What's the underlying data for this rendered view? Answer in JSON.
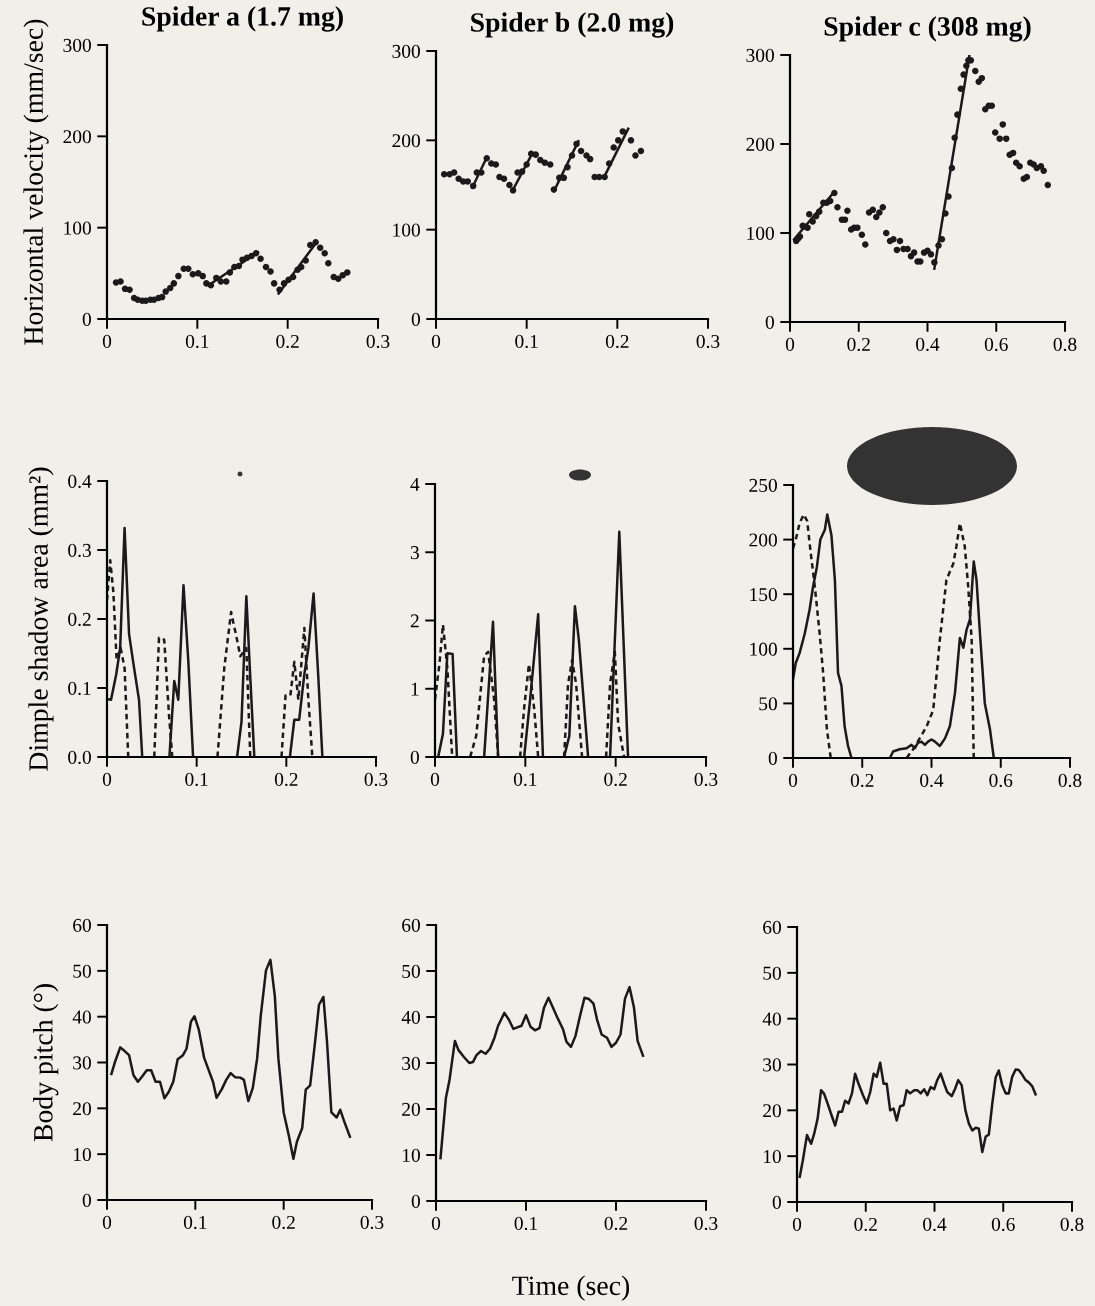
{
  "chart_data": [
    {
      "type": "scatter",
      "title": "Spider a (1.7 mg)",
      "ylabel": "Horizontal velocity (mm/sec)",
      "xlim": [
        0,
        0.3
      ],
      "xticks": [
        0,
        0.1,
        0.2,
        0.3
      ],
      "ylim": [
        0,
        300
      ],
      "yticks": [
        0,
        100,
        200,
        300
      ],
      "series": [
        {
          "marker": "circle",
          "color": "#1a1a1a",
          "x": [
            0.01,
            0.015,
            0.02,
            0.025,
            0.03,
            0.034,
            0.039,
            0.043,
            0.048,
            0.052,
            0.057,
            0.061,
            0.065,
            0.07,
            0.074,
            0.079,
            0.085,
            0.09,
            0.095,
            0.101,
            0.106,
            0.11,
            0.115,
            0.121,
            0.126,
            0.132,
            0.136,
            0.141,
            0.146,
            0.15,
            0.155,
            0.16,
            0.165,
            0.17,
            0.176,
            0.181,
            0.185,
            0.191,
            0.196,
            0.201,
            0.206,
            0.211,
            0.215,
            0.22,
            0.225,
            0.231,
            0.236,
            0.241,
            0.245,
            0.251,
            0.256,
            0.261,
            0.266
          ],
          "values": [
            40,
            41,
            33,
            32,
            23,
            21,
            20,
            20,
            21,
            21,
            23,
            24,
            30,
            34,
            39,
            47,
            55,
            55,
            49,
            50,
            47,
            39,
            37,
            45,
            41,
            41,
            51,
            57,
            58,
            65,
            67,
            69,
            72,
            66,
            57,
            52,
            39,
            32,
            39,
            43,
            46,
            54,
            57,
            64,
            81,
            84,
            78,
            72,
            61,
            46,
            44,
            48,
            51
          ]
        },
        {
          "type": "line",
          "color": "#1a1a1a",
          "x": [
            0.114,
            0.167
          ],
          "values": [
            38,
            73
          ]
        },
        {
          "type": "line",
          "color": "#1a1a1a",
          "x": [
            0.19,
            0.232
          ],
          "values": [
            28,
            84
          ]
        }
      ]
    },
    {
      "type": "scatter",
      "title": "Spider b (2.0 mg)",
      "xlim": [
        0,
        0.3
      ],
      "xticks": [
        0,
        0.1,
        0.2,
        0.3
      ],
      "ylim": [
        0,
        300
      ],
      "yticks": [
        0,
        100,
        200,
        300
      ],
      "series": [
        {
          "marker": "circle",
          "color": "#1a1a1a",
          "x": [
            0.009,
            0.015,
            0.02,
            0.025,
            0.03,
            0.035,
            0.041,
            0.045,
            0.05,
            0.056,
            0.061,
            0.066,
            0.07,
            0.075,
            0.081,
            0.085,
            0.09,
            0.095,
            0.1,
            0.105,
            0.11,
            0.115,
            0.12,
            0.126,
            0.13,
            0.136,
            0.141,
            0.145,
            0.15,
            0.155,
            0.16,
            0.166,
            0.17,
            0.175,
            0.18,
            0.186,
            0.191,
            0.196,
            0.201,
            0.206,
            0.215,
            0.22,
            0.226
          ],
          "values": [
            162,
            162,
            164,
            157,
            154,
            154,
            149,
            164,
            164,
            180,
            174,
            173,
            159,
            157,
            150,
            144,
            164,
            165,
            173,
            185,
            184,
            178,
            175,
            173,
            145,
            158,
            158,
            170,
            183,
            196,
            188,
            183,
            179,
            159,
            159,
            159,
            174,
            192,
            200,
            210,
            200,
            183,
            188
          ]
        },
        {
          "type": "line",
          "color": "#1a1a1a",
          "x": [
            0.04,
            0.056
          ],
          "values": [
            147,
            181
          ]
        },
        {
          "type": "line",
          "color": "#1a1a1a",
          "x": [
            0.084,
            0.106
          ],
          "values": [
            143,
            185
          ]
        },
        {
          "type": "line",
          "color": "#1a1a1a",
          "x": [
            0.13,
            0.157
          ],
          "values": [
            143,
            199
          ]
        },
        {
          "type": "line",
          "color": "#1a1a1a",
          "x": [
            0.185,
            0.212
          ],
          "values": [
            158,
            213
          ]
        }
      ]
    },
    {
      "type": "scatter",
      "title": "Spider c (308 mg)",
      "xlim": [
        0,
        0.8
      ],
      "xticks": [
        0,
        0.2,
        0.4,
        0.6,
        0.8
      ],
      "ylim": [
        0,
        300
      ],
      "yticks": [
        0,
        100,
        200,
        300
      ],
      "series": [
        {
          "marker": "circle",
          "color": "#1a1a1a",
          "x": [
            0.018,
            0.024,
            0.029,
            0.037,
            0.045,
            0.051,
            0.056,
            0.066,
            0.076,
            0.085,
            0.097,
            0.107,
            0.117,
            0.129,
            0.138,
            0.151,
            0.16,
            0.167,
            0.178,
            0.187,
            0.196,
            0.209,
            0.219,
            0.23,
            0.241,
            0.251,
            0.26,
            0.27,
            0.28,
            0.291,
            0.301,
            0.311,
            0.32,
            0.33,
            0.342,
            0.352,
            0.361,
            0.371,
            0.379,
            0.39,
            0.4,
            0.41,
            0.42,
            0.432,
            0.442,
            0.452,
            0.461,
            0.471,
            0.479,
            0.487,
            0.497,
            0.505,
            0.513,
            0.519,
            0.526,
            0.539,
            0.549,
            0.558,
            0.568,
            0.578,
            0.587,
            0.597,
            0.61,
            0.619,
            0.629,
            0.639,
            0.649,
            0.658,
            0.668,
            0.68,
            0.689,
            0.699,
            0.709,
            0.718,
            0.73,
            0.738,
            0.75
          ],
          "values": [
            91,
            94,
            96,
            108,
            107,
            106,
            121,
            113,
            119,
            124,
            134,
            134,
            136,
            145,
            129,
            115,
            115,
            125,
            104,
            106,
            106,
            98,
            87,
            123,
            126,
            118,
            123,
            129,
            100,
            91,
            93,
            81,
            91,
            82,
            82,
            74,
            78,
            68,
            68,
            78,
            80,
            76,
            67,
            86,
            93,
            122,
            141,
            173,
            207,
            233,
            262,
            278,
            288,
            294,
            294,
            282,
            270,
            274,
            239,
            243,
            243,
            213,
            206,
            222,
            206,
            188,
            190,
            179,
            175,
            161,
            163,
            179,
            177,
            173,
            175,
            170,
            154
          ]
        },
        {
          "type": "line",
          "color": "#1a1a1a",
          "x": [
            0.012,
            0.126
          ],
          "values": [
            93,
            145
          ]
        },
        {
          "type": "line",
          "color": "#1a1a1a",
          "x": [
            0.42,
            0.522
          ],
          "values": [
            60,
            300
          ]
        }
      ]
    },
    {
      "type": "line",
      "ylabel": "Dimple shadow area (mm²)",
      "xlim": [
        0,
        0.3
      ],
      "xticks": [
        0,
        0.1,
        0.2,
        0.3
      ],
      "ylim": [
        0,
        0.4
      ],
      "yticks": [
        {
          "value": 0,
          "label": "0.0"
        },
        0.1,
        0.2,
        0.3,
        0.4
      ],
      "series": [
        {
          "line_style": "solid",
          "color": "#1a1a1a",
          "x": [
            0,
            0.0045,
            0.0103,
            0.0147,
            0.0196,
            0.0246,
            0.0295,
            0.0357,
            0.0393,
            0.0545,
            0.0696,
            0.075,
            0.0795,
            0.0853,
            0.0906,
            0.096,
            0.12,
            0.1451,
            0.15,
            0.1554,
            0.1598,
            0.1643,
            0.184,
            0.204,
            0.2089,
            0.2143,
            0.2201,
            0.2246,
            0.2304,
            0.2357,
            0.2402
          ],
          "values": [
            0.084,
            0.083,
            0.12,
            0.158,
            0.332,
            0.178,
            0.135,
            0.083,
            0,
            null,
            0,
            0.11,
            0.083,
            0.249,
            0.141,
            0,
            null,
            0,
            0.051,
            0.233,
            0.115,
            0,
            null,
            0,
            0.054,
            0.054,
            0.12,
            0.158,
            0.237,
            0.115,
            0
          ]
        },
        {
          "line_style": "dashed",
          "color": "#1a1a1a",
          "x": [
            0,
            0.0036,
            0.0071,
            0.0107,
            0.0152,
            0.0196,
            0.0237,
            0.038,
            0.0527,
            0.058,
            0.0638,
            0.0692,
            0.0728,
            0.098,
            0.1232,
            0.1308,
            0.1384,
            0.1442,
            0.1487,
            0.1554,
            0.1598,
            0.177,
            0.1946,
            0.1991,
            0.2045,
            0.2089,
            0.2134,
            0.2201,
            0.2246,
            0.229
          ],
          "values": [
            0.227,
            0.285,
            0.239,
            0.141,
            0.158,
            0.129,
            0,
            null,
            0,
            0.173,
            0.17,
            0.06,
            0,
            null,
            0,
            0.129,
            0.21,
            0.175,
            0.146,
            0.158,
            0,
            null,
            0,
            0.089,
            0.089,
            0.138,
            0.083,
            0.187,
            0.083,
            0
          ]
        }
      ]
    },
    {
      "type": "line",
      "xlim": [
        0,
        0.3
      ],
      "xticks": [
        0,
        0.1,
        0.2,
        0.3
      ],
      "ylim": [
        0,
        4
      ],
      "yticks": [
        0,
        1,
        2,
        3,
        4
      ],
      "series": [
        {
          "line_style": "solid",
          "color": "#1a1a1a",
          "x": [
            0.0035,
            0.0088,
            0.0137,
            0.0195,
            0.0243,
            0.039,
            0.0544,
            0.0642,
            0.0699,
            0.084,
            0.0987,
            0.1053,
            0.1142,
            0.1195,
            0.131,
            0.1429,
            0.1487,
            0.1549,
            0.1593,
            0.1695,
            0.182,
            0.1938,
            0.204,
            0.2137
          ],
          "values": [
            0,
            0.34,
            1.52,
            1.51,
            0,
            null,
            0,
            1.98,
            0,
            null,
            0,
            0.84,
            2.09,
            0,
            null,
            0,
            0.31,
            2.21,
            1.71,
            0,
            null,
            0,
            3.3,
            0
          ]
        },
        {
          "line_style": "dashed",
          "color": "#1a1a1a",
          "x": [
            0,
            0.0049,
            0.0088,
            0.0137,
            0.019,
            0.029,
            0.0389,
            0.0456,
            0.0544,
            0.0588,
            0.0655,
            0.0699,
            0.082,
            0.0942,
            0.0987,
            0.104,
            0.1097,
            0.1142,
            0.128,
            0.1429,
            0.1473,
            0.1518,
            0.1562,
            0.1628,
            0.176,
            0.1894,
            0.1938,
            0.1991,
            0.2027,
            0.2093
          ],
          "values": [
            0.84,
            1.36,
            1.94,
            1.3,
            0,
            null,
            0,
            0.31,
            1.48,
            1.54,
            0.84,
            0,
            null,
            0,
            0.72,
            1.36,
            0.72,
            0,
            null,
            0,
            1.07,
            1.42,
            1.07,
            0,
            null,
            0,
            1.07,
            1.54,
            0.49,
            0
          ]
        }
      ]
    },
    {
      "type": "line",
      "xlim": [
        0,
        0.8
      ],
      "xticks": [
        0,
        0.2,
        0.4,
        0.6,
        0.8
      ],
      "ylim": [
        0,
        250
      ],
      "yticks": [
        0,
        50,
        100,
        150,
        200,
        250
      ],
      "series": [
        {
          "line_style": "solid",
          "color": "#1a1a1a",
          "x": [
            0,
            0.008,
            0.019,
            0.034,
            0.048,
            0.058,
            0.069,
            0.079,
            0.092,
            0.099,
            0.111,
            0.121,
            0.13,
            0.14,
            0.149,
            0.159,
            0.169,
            0.22,
            0.28,
            0.289,
            0.308,
            0.328,
            0.342,
            0.352,
            0.361,
            0.371,
            0.381,
            0.39,
            0.4,
            0.41,
            0.424,
            0.439,
            0.453,
            0.468,
            0.482,
            0.492,
            0.501,
            0.511,
            0.522,
            0.53,
            0.54,
            0.554,
            0.569,
            0.58
          ],
          "values": [
            72,
            87,
            96,
            114,
            136,
            157,
            175,
            200,
            209,
            223,
            204,
            163,
            78,
            66,
            29,
            11,
            0,
            null,
            0,
            6,
            8,
            9,
            12,
            9,
            14,
            15,
            12,
            15,
            17,
            15,
            11,
            18,
            29,
            60,
            110,
            101,
            117,
            127,
            180,
            163,
            114,
            50,
            26,
            0
          ]
        },
        {
          "line_style": "dashed",
          "color": "#1a1a1a",
          "x": [
            0,
            0.008,
            0.019,
            0.031,
            0.041,
            0.05,
            0.063,
            0.077,
            0.087,
            0.098,
            0.109,
            0.22,
            0.328,
            0.347,
            0.366,
            0.386,
            0.405,
            0.424,
            0.443,
            0.463,
            0.472,
            0.482,
            0.496,
            0.506,
            0.516,
            0.522
          ],
          "values": [
            192,
            200,
            215,
            223,
            217,
            191,
            157,
            114,
            78,
            26,
            0,
            null,
            0,
            8,
            18,
            29,
            44,
            108,
            163,
            178,
            194,
            215,
            194,
            157,
            108,
            0
          ]
        }
      ]
    },
    {
      "type": "line",
      "ylabel": "Body pitch (°)",
      "xlim": [
        0,
        0.3
      ],
      "xticks": [
        0,
        0.1,
        0.2,
        0.3
      ],
      "ylim": [
        0,
        60
      ],
      "yticks": [
        0,
        10,
        20,
        30,
        40,
        50,
        60
      ],
      "series": [
        {
          "line_style": "solid",
          "color": "#1a1a1a",
          "x": [
            0.005,
            0.009,
            0.015,
            0.02,
            0.025,
            0.03,
            0.035,
            0.04,
            0.045,
            0.05,
            0.055,
            0.06,
            0.065,
            0.07,
            0.075,
            0.08,
            0.086,
            0.09,
            0.095,
            0.099,
            0.104,
            0.11,
            0.115,
            0.12,
            0.124,
            0.13,
            0.135,
            0.14,
            0.145,
            0.151,
            0.155,
            0.16,
            0.165,
            0.17,
            0.174,
            0.18,
            0.185,
            0.19,
            0.194,
            0.2,
            0.206,
            0.211,
            0.215,
            0.221,
            0.225,
            0.23,
            0.235,
            0.24,
            0.245,
            0.249,
            0.254,
            0.26,
            0.264,
            0.269,
            0.275
          ],
          "values": [
            27.5,
            30.1,
            33.3,
            32.5,
            31.6,
            27.2,
            25.8,
            27.0,
            28.3,
            28.3,
            25.8,
            25.8,
            22.2,
            23.6,
            25.8,
            30.7,
            31.6,
            33.0,
            38.9,
            40.1,
            37.1,
            31.0,
            28.4,
            25.8,
            22.3,
            24.2,
            26.2,
            27.7,
            26.8,
            26.7,
            26.2,
            21.6,
            24.4,
            30.9,
            40.1,
            50.1,
            52.4,
            44.5,
            30.9,
            19.1,
            13.9,
            9.0,
            12.7,
            15.7,
            24.1,
            25.0,
            33.5,
            42.6,
            44.3,
            34.7,
            19.1,
            18.0,
            19.7,
            16.9,
            13.8
          ]
        }
      ]
    },
    {
      "type": "line",
      "xlabel": "Time (sec)",
      "xlim": [
        0,
        0.3
      ],
      "xticks": [
        0,
        0.1,
        0.2,
        0.3
      ],
      "ylim": [
        0,
        60
      ],
      "yticks": [
        0,
        10,
        20,
        30,
        40,
        50,
        60
      ],
      "series": [
        {
          "line_style": "solid",
          "color": "#1a1a1a",
          "x": [
            0.005,
            0.011,
            0.015,
            0.021,
            0.025,
            0.031,
            0.037,
            0.041,
            0.045,
            0.05,
            0.055,
            0.06,
            0.065,
            0.069,
            0.076,
            0.081,
            0.086,
            0.091,
            0.095,
            0.1,
            0.105,
            0.11,
            0.115,
            0.12,
            0.125,
            0.13,
            0.135,
            0.141,
            0.145,
            0.15,
            0.155,
            0.16,
            0.165,
            0.17,
            0.175,
            0.179,
            0.184,
            0.19,
            0.195,
            0.2,
            0.205,
            0.21,
            0.215,
            0.22,
            0.224,
            0.23
          ],
          "values": [
            9.3,
            22.4,
            26.3,
            34.8,
            32.8,
            31.3,
            30.0,
            30.2,
            31.7,
            32.6,
            32.0,
            33.1,
            35.5,
            38.1,
            40.9,
            39.4,
            37.4,
            37.8,
            38.1,
            40.4,
            37.9,
            37.1,
            37.6,
            42.0,
            44.2,
            42.0,
            39.8,
            37.4,
            34.6,
            33.5,
            35.9,
            40.2,
            44.2,
            43.9,
            42.9,
            39.4,
            36.2,
            35.5,
            33.5,
            34.4,
            36.2,
            44.0,
            46.5,
            42.0,
            34.8,
            31.6
          ]
        }
      ]
    },
    {
      "type": "line",
      "xlim": [
        0,
        0.8
      ],
      "xticks": [
        0,
        0.2,
        0.4,
        0.6,
        0.8
      ],
      "ylim": [
        0,
        60
      ],
      "yticks": [
        0,
        10,
        20,
        30,
        40,
        50,
        60
      ],
      "series": [
        {
          "line_style": "solid",
          "color": "#1a1a1a",
          "x": [
            0.008,
            0.017,
            0.029,
            0.041,
            0.05,
            0.06,
            0.07,
            0.079,
            0.089,
            0.102,
            0.111,
            0.121,
            0.131,
            0.14,
            0.15,
            0.16,
            0.169,
            0.179,
            0.192,
            0.203,
            0.213,
            0.223,
            0.232,
            0.242,
            0.252,
            0.261,
            0.271,
            0.281,
            0.29,
            0.3,
            0.31,
            0.319,
            0.329,
            0.341,
            0.35,
            0.36,
            0.37,
            0.379,
            0.389,
            0.399,
            0.408,
            0.418,
            0.428,
            0.437,
            0.45,
            0.46,
            0.469,
            0.479,
            0.49,
            0.5,
            0.51,
            0.52,
            0.529,
            0.539,
            0.549,
            0.558,
            0.568,
            0.578,
            0.587,
            0.597,
            0.607,
            0.616,
            0.626,
            0.636,
            0.645,
            0.655,
            0.665,
            0.674,
            0.684,
            0.694
          ],
          "values": [
            5.5,
            9.1,
            14.6,
            12.7,
            14.9,
            18.2,
            24.4,
            23.6,
            21.5,
            18.6,
            16.7,
            19.7,
            19.7,
            22.1,
            21.5,
            23.7,
            28.0,
            25.8,
            23.3,
            21.5,
            24.0,
            28.0,
            27.3,
            30.4,
            25.8,
            25.8,
            20.0,
            20.4,
            17.8,
            20.9,
            21.1,
            24.4,
            23.7,
            24.4,
            24.4,
            23.7,
            24.6,
            23.3,
            25.1,
            24.6,
            26.6,
            28.0,
            25.8,
            24.0,
            23.1,
            24.7,
            26.6,
            25.5,
            20.0,
            17.1,
            15.6,
            16.2,
            16.0,
            10.9,
            14.3,
            14.7,
            21.4,
            27.2,
            28.7,
            25.5,
            23.7,
            23.7,
            27.3,
            28.9,
            28.8,
            27.8,
            26.6,
            26.1,
            25.3,
            23.5
          ]
        }
      ]
    }
  ]
}
